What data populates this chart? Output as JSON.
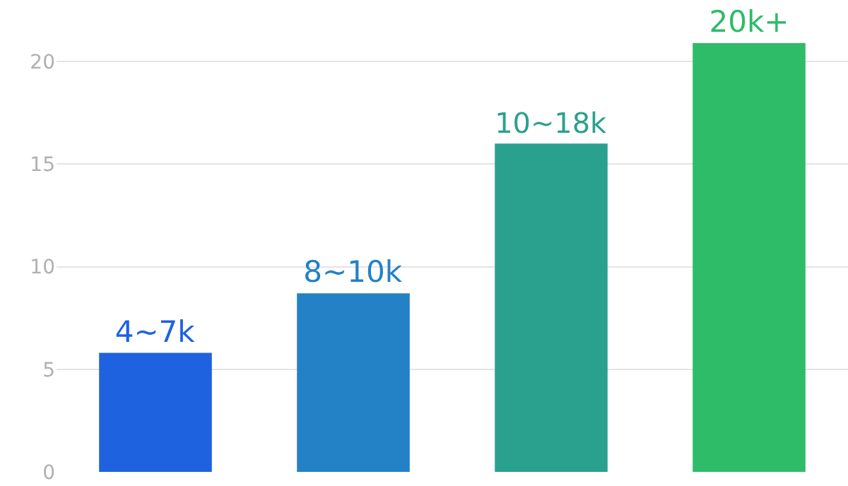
{
  "chart_data": {
    "type": "bar",
    "categories": [
      "4~7k",
      "8~10k",
      "10~18k",
      "20k+"
    ],
    "values": [
      5.8,
      8.7,
      16.0,
      20.9
    ],
    "colors": [
      "#1f62e0",
      "#2381c6",
      "#2aa18e",
      "#2ebc68"
    ],
    "ylim": [
      0,
      23
    ],
    "yticks": [
      0,
      5,
      10,
      15,
      20
    ],
    "grid": "y",
    "tick_labels": "y"
  }
}
